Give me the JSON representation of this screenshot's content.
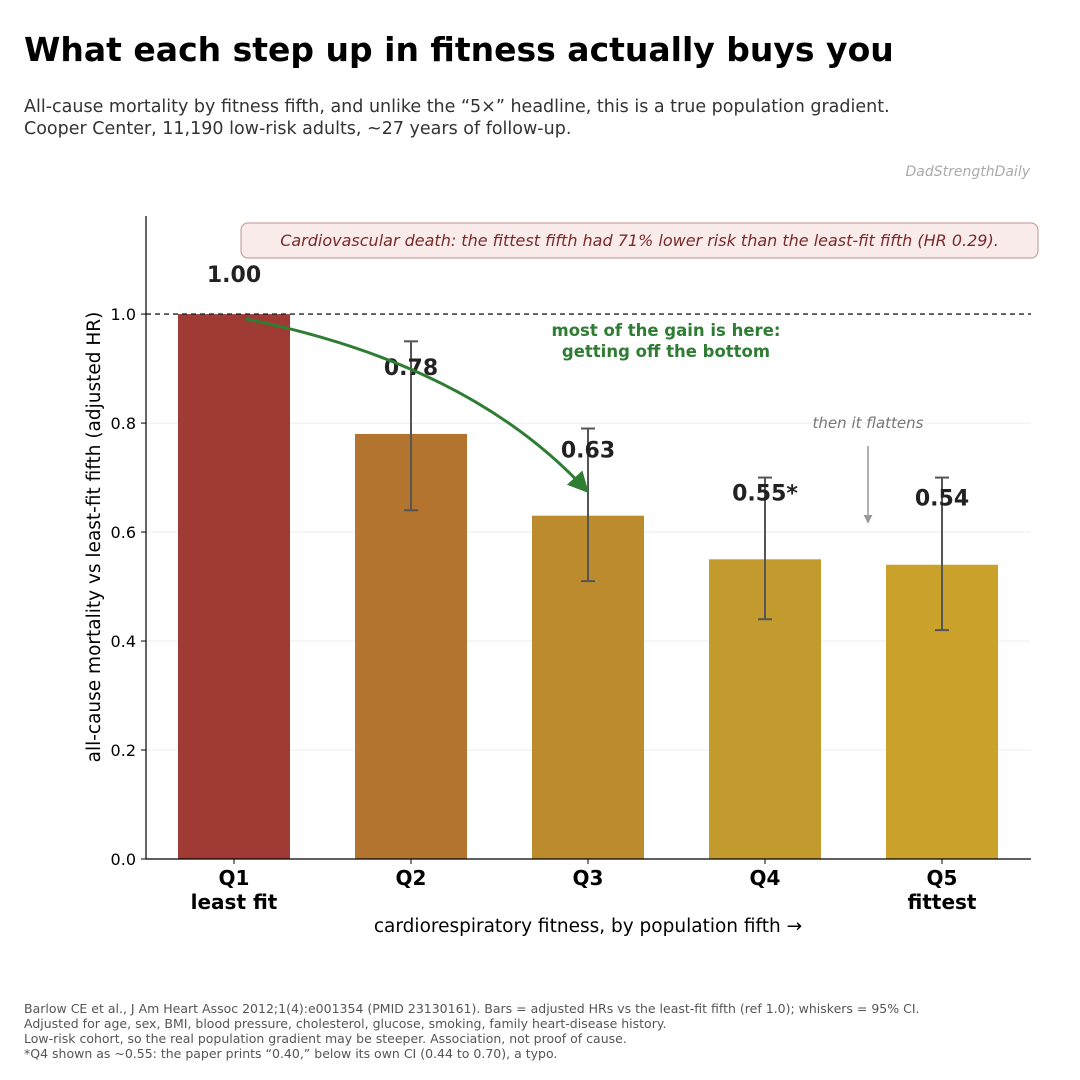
{
  "title": "What each step up in fitness actually buys you",
  "subtitle_lines": [
    "All-cause mortality by fitness fifth, and unlike the “5×” headline, this is a true population gradient.",
    "Cooper Center, 11,190 low-risk adults, ~27 years of follow-up."
  ],
  "brand": "DadStrengthDaily",
  "footer_lines": [
    "Barlow CE et al., J Am Heart Assoc 2012;1(4):e001354 (PMID 23130161). Bars = adjusted HRs vs the least-fit fifth (ref 1.0); whiskers = 95% CI.",
    "Adjusted for age, sex, BMI, blood pressure, cholesterol, glucose, smoking, family heart-disease history.",
    "Low-risk cohort, so the real population gradient may be steeper. Association, not proof of cause.",
    "*Q4 shown as ~0.55: the paper prints “0.40,” below its own CI (0.44 to 0.70), a typo."
  ],
  "chart_data": {
    "type": "bar",
    "categories": [
      "Q1",
      "Q2",
      "Q3",
      "Q4",
      "Q5"
    ],
    "category_sublabels": [
      "least fit",
      "",
      "",
      "",
      "fittest"
    ],
    "values": [
      1.0,
      0.78,
      0.63,
      0.55,
      0.54
    ],
    "value_labels": [
      "1.00",
      "0.78",
      "0.63",
      "0.55*",
      "0.54"
    ],
    "ci_low": [
      null,
      0.64,
      0.51,
      0.44,
      0.42
    ],
    "ci_high": [
      null,
      0.95,
      0.79,
      0.7,
      0.7
    ],
    "bar_colors": [
      "#a03a35",
      "#b3742f",
      "#bb8b2e",
      "#c39a2d",
      "#c9a12b"
    ],
    "xlabel": "cardiorespiratory fitness, by population fifth →",
    "ylabel": "all-cause mortality vs least-fit fifth  (adjusted HR)",
    "ylim": [
      0,
      1.18
    ],
    "yticks": [
      "0.0",
      "0.2",
      "0.4",
      "0.6",
      "0.8",
      "1.0"
    ],
    "reference_line": 1.0,
    "grid": "horizontal, light",
    "annotations": {
      "cv_box": "Cardiovascular death: the fittest fifth had 71% lower risk than the least-fit fifth (HR 0.29).",
      "gain_line1": "most of the gain is here:",
      "gain_line2": "getting off the bottom",
      "flattens": "then it flattens"
    },
    "colors": {
      "gain": "#2e7d32",
      "cv_text": "#7a2a2a",
      "cv_box_bg": "#f8ebea",
      "cv_box_border": "#c9a3a3",
      "flattens": "#777777",
      "errorbar": "#555555"
    }
  }
}
